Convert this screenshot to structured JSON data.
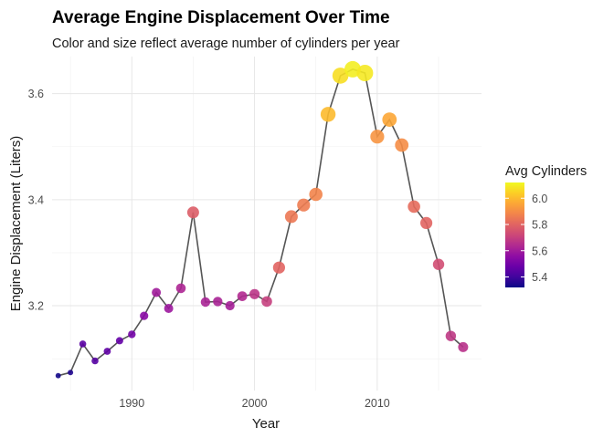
{
  "chart_data": {
    "type": "scatter",
    "title": "Average Engine Displacement Over Time",
    "subtitle": "Color and size reflect average number of cylinders per year",
    "xlabel": "Year",
    "ylabel": "Engine Displacement (Liters)",
    "xlim": [
      1983.5,
      2018.5
    ],
    "ylim": [
      3.04,
      3.67
    ],
    "x_ticks": [
      1990,
      2000,
      2010
    ],
    "x_tick_labels": [
      "1990",
      "2000",
      "2010"
    ],
    "y_ticks": [
      3.2,
      3.4,
      3.6
    ],
    "y_tick_labels": [
      "3.2",
      "3.4",
      "3.6"
    ],
    "grid": true,
    "line_connecting_points": true,
    "legend": {
      "title": "Avg Cylinders",
      "placement": "right",
      "labels": [
        "6.0",
        "5.8",
        "5.6",
        "5.4"
      ],
      "values": [
        6.0,
        5.8,
        5.6,
        5.4
      ],
      "range": [
        5.32,
        6.12
      ],
      "palette": "plasma"
    },
    "x": [
      1984,
      1985,
      1986,
      1987,
      1988,
      1989,
      1990,
      1991,
      1992,
      1993,
      1994,
      1995,
      1996,
      1997,
      1998,
      1999,
      2000,
      2001,
      2002,
      2003,
      2004,
      2005,
      2006,
      2007,
      2008,
      2009,
      2010,
      2011,
      2012,
      2013,
      2014,
      2015,
      2016,
      2017
    ],
    "y": [
      3.068,
      3.074,
      3.128,
      3.096,
      3.114,
      3.134,
      3.146,
      3.181,
      3.225,
      3.195,
      3.233,
      3.376,
      3.207,
      3.208,
      3.2,
      3.218,
      3.222,
      3.208,
      3.272,
      3.368,
      3.39,
      3.41,
      3.561,
      3.634,
      3.646,
      3.639,
      3.519,
      3.551,
      3.503,
      3.387,
      3.356,
      3.278,
      3.143,
      3.122
    ],
    "cylinders": [
      5.33,
      5.35,
      5.45,
      5.44,
      5.46,
      5.47,
      5.5,
      5.55,
      5.6,
      5.59,
      5.63,
      5.78,
      5.62,
      5.62,
      5.61,
      5.64,
      5.67,
      5.7,
      5.8,
      5.85,
      5.86,
      5.88,
      6.0,
      6.07,
      6.1,
      6.09,
      5.92,
      5.96,
      5.9,
      5.82,
      5.8,
      5.74,
      5.68,
      5.66
    ]
  }
}
